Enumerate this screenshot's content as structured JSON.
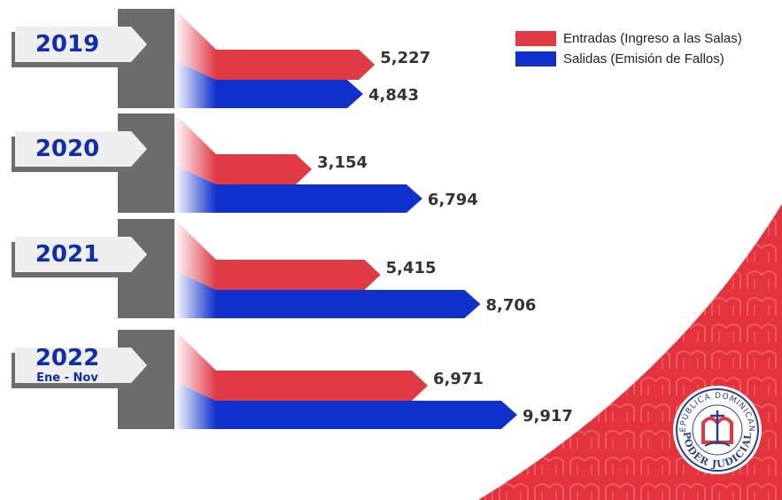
{
  "colors": {
    "entradas": "#e03a45",
    "salidas": "#1030cc",
    "value_text": "#333333",
    "year_text": "#0f2ea8",
    "tab_fill": "#eeeeee",
    "tab_shadow": "#6e6e6e",
    "post": "#6b6b6b",
    "accent": "#e5333d"
  },
  "legend": {
    "entradas": "Entradas (Ingreso a las Salas)",
    "salidas": "Salidas (Emisión de Fallos)"
  },
  "seal": {
    "top_text": "REPÚBLICA DOMINICANA",
    "bottom_text": "PODER JUDICIAL"
  },
  "chart_data": {
    "type": "bar",
    "orientation": "horizontal",
    "categories": [
      "2019",
      "2020",
      "2021",
      "2022"
    ],
    "category_sublabels": [
      "",
      "",
      "",
      "Ene - Nov"
    ],
    "series": [
      {
        "name": "Entradas (Ingreso a las Salas)",
        "values": [
          5227,
          3154,
          5415,
          6971
        ],
        "labels": [
          "5,227",
          "3,154",
          "5,415",
          "6,971"
        ]
      },
      {
        "name": "Salidas (Emisión de Fallos)",
        "values": [
          4843,
          6794,
          8706,
          9917
        ],
        "labels": [
          "4,843",
          "6,794",
          "8,706",
          "9,917"
        ]
      }
    ],
    "title": "",
    "xlabel": "",
    "ylabel": "",
    "grid": false,
    "legend_position": "top-right"
  }
}
